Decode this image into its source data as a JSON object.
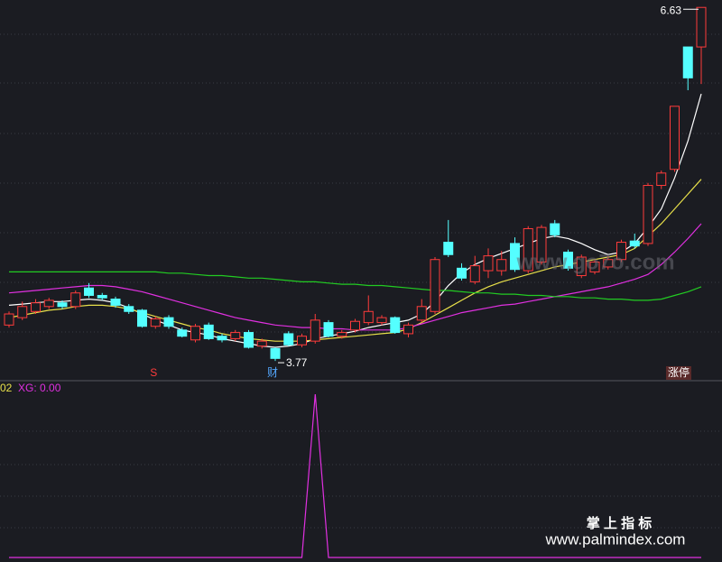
{
  "chart_data": {
    "type": "candlestick",
    "ylim": [
      3.61,
      6.69
    ],
    "up_color": "#ff3b3b",
    "down_color": "#54ffff",
    "candles": {
      "open": [
        4.06,
        4.12,
        4.17,
        4.21,
        4.24,
        4.21,
        4.36,
        4.3,
        4.27,
        4.21,
        4.18,
        4.05,
        4.12,
        4.02,
        3.94,
        4.06,
        3.97,
        3.95,
        4.0,
        3.89,
        3.87,
        3.99,
        3.9,
        3.93,
        4.08,
        3.97,
        4.02,
        4.08,
        4.08,
        4.12,
        3.99,
        4.1,
        4.17,
        4.73,
        4.52,
        4.41,
        4.5,
        4.5,
        4.72,
        4.5,
        4.57,
        4.88,
        4.65,
        4.46,
        4.49,
        4.53,
        4.59,
        4.74,
        4.72,
        5.19,
        5.32,
        6.31,
        6.31
      ],
      "high": [
        4.17,
        4.25,
        4.27,
        4.28,
        4.26,
        4.34,
        4.4,
        4.32,
        4.29,
        4.23,
        4.19,
        4.13,
        4.14,
        4.04,
        4.07,
        4.08,
        3.99,
        4.02,
        4.02,
        3.95,
        3.88,
        4.01,
        3.99,
        4.15,
        4.1,
        4.02,
        4.11,
        4.3,
        4.14,
        4.13,
        4.08,
        4.27,
        4.61,
        4.91,
        4.56,
        4.62,
        4.68,
        4.66,
        4.77,
        4.86,
        4.87,
        4.91,
        4.67,
        4.63,
        4.59,
        4.62,
        4.75,
        4.8,
        5.21,
        5.31,
        5.83,
        6.31,
        6.63
      ],
      "low": [
        4.04,
        4.1,
        4.15,
        4.19,
        4.19,
        4.19,
        4.28,
        4.26,
        4.2,
        4.15,
        4.04,
        4.03,
        4.03,
        3.96,
        3.92,
        3.94,
        3.92,
        3.93,
        3.87,
        3.87,
        3.77,
        3.89,
        3.88,
        3.91,
        3.96,
        3.95,
        4.0,
        4.06,
        4.06,
        3.99,
        3.96,
        4.08,
        4.15,
        4.61,
        4.42,
        4.39,
        4.44,
        4.46,
        4.49,
        4.48,
        4.55,
        4.77,
        4.5,
        4.44,
        4.47,
        4.51,
        4.57,
        4.68,
        4.7,
        5.16,
        5.3,
        5.96,
        6.01
      ],
      "close": [
        4.15,
        4.21,
        4.24,
        4.26,
        4.21,
        4.32,
        4.3,
        4.28,
        4.22,
        4.17,
        4.05,
        4.11,
        4.05,
        3.97,
        4.05,
        3.95,
        3.94,
        4.0,
        3.88,
        3.93,
        3.79,
        3.9,
        3.97,
        4.1,
        3.97,
        4.0,
        4.09,
        4.17,
        4.12,
        4.0,
        4.06,
        4.21,
        4.59,
        4.63,
        4.44,
        4.54,
        4.62,
        4.59,
        4.51,
        4.84,
        4.85,
        4.79,
        4.52,
        4.61,
        4.57,
        4.59,
        4.73,
        4.7,
        5.19,
        5.29,
        5.83,
        6.06,
        6.63
      ]
    },
    "series": [
      {
        "color": "#ffffff",
        "values": [
          4.22,
          4.23,
          4.24,
          4.25,
          4.25,
          4.26,
          4.27,
          4.26,
          4.24,
          4.2,
          4.15,
          4.1,
          4.06,
          4.02,
          4.0,
          3.98,
          3.95,
          3.93,
          3.91,
          3.89,
          3.88,
          3.89,
          3.91,
          3.95,
          3.97,
          3.99,
          4.01,
          4.04,
          4.06,
          4.08,
          4.1,
          4.15,
          4.25,
          4.38,
          4.48,
          4.55,
          4.6,
          4.64,
          4.68,
          4.72,
          4.76,
          4.78,
          4.76,
          4.72,
          4.67,
          4.63,
          4.65,
          4.72,
          4.85,
          5.0,
          5.25,
          5.55,
          5.93
        ]
      },
      {
        "color": "#e8e04a",
        "values": [
          4.12,
          4.14,
          4.16,
          4.18,
          4.19,
          4.21,
          4.22,
          4.22,
          4.21,
          4.19,
          4.16,
          4.13,
          4.1,
          4.07,
          4.04,
          4.02,
          3.99,
          3.97,
          3.95,
          3.94,
          3.93,
          3.93,
          3.93,
          3.94,
          3.95,
          3.96,
          3.97,
          3.98,
          3.99,
          4.0,
          4.03,
          4.08,
          4.14,
          4.2,
          4.26,
          4.32,
          4.37,
          4.41,
          4.44,
          4.47,
          4.5,
          4.53,
          4.55,
          4.57,
          4.59,
          4.61,
          4.63,
          4.68,
          4.78,
          4.88,
          5.0,
          5.12,
          5.24
        ]
      },
      {
        "color": "#e030e0",
        "values": [
          4.32,
          4.33,
          4.34,
          4.35,
          4.36,
          4.37,
          4.38,
          4.38,
          4.37,
          4.35,
          4.33,
          4.3,
          4.27,
          4.24,
          4.21,
          4.18,
          4.15,
          4.12,
          4.1,
          4.08,
          4.06,
          4.05,
          4.04,
          4.04,
          4.03,
          4.03,
          4.02,
          4.02,
          4.02,
          4.02,
          4.04,
          4.07,
          4.1,
          4.13,
          4.16,
          4.18,
          4.2,
          4.22,
          4.23,
          4.25,
          4.27,
          4.29,
          4.31,
          4.33,
          4.35,
          4.37,
          4.4,
          4.43,
          4.47,
          4.55,
          4.65,
          4.76,
          4.88
        ]
      },
      {
        "color": "#22cc22",
        "values": [
          4.49,
          4.49,
          4.49,
          4.49,
          4.49,
          4.49,
          4.49,
          4.49,
          4.49,
          4.49,
          4.49,
          4.49,
          4.48,
          4.48,
          4.47,
          4.46,
          4.46,
          4.45,
          4.44,
          4.44,
          4.43,
          4.42,
          4.41,
          4.41,
          4.4,
          4.39,
          4.39,
          4.38,
          4.38,
          4.37,
          4.36,
          4.35,
          4.34,
          4.34,
          4.33,
          4.32,
          4.32,
          4.31,
          4.31,
          4.3,
          4.3,
          4.29,
          4.29,
          4.28,
          4.28,
          4.27,
          4.27,
          4.26,
          4.26,
          4.27,
          4.3,
          4.33,
          4.37
        ]
      }
    ],
    "high_label": 6.63,
    "low_label": 3.77,
    "markers": {
      "s": "S",
      "cai": "财",
      "zt": "涨停"
    },
    "indicator": {
      "labels": [
        "02",
        "XG: 0.00"
      ],
      "color": "#e030e0",
      "ylim": [
        0,
        1.05
      ],
      "values": [
        0,
        0,
        0,
        0,
        0,
        0,
        0,
        0,
        0,
        0,
        0,
        0,
        0,
        0,
        0,
        0,
        0,
        0,
        0,
        0,
        0,
        0,
        0,
        1,
        0,
        0,
        0,
        0,
        0,
        0,
        0,
        0,
        0,
        0,
        0,
        0,
        0,
        0,
        0,
        0,
        0,
        0,
        0,
        0,
        0,
        0,
        0,
        0,
        0,
        0,
        0,
        0,
        0
      ]
    },
    "watermarks": [
      "www.go7o.com",
      "掌 上 指 标",
      "www.palmindex.com"
    ]
  }
}
